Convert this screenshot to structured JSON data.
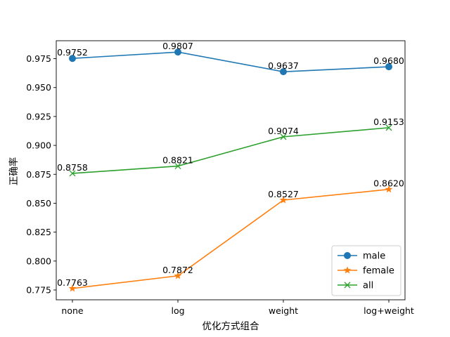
{
  "chart_data": {
    "type": "line",
    "title": "",
    "xlabel": "优化方式组合",
    "ylabel": "正确率",
    "categories": [
      "none",
      "log",
      "weight",
      "log+weight"
    ],
    "ylim": [
      0.7665,
      0.9905
    ],
    "yticks": [
      0.775,
      0.8,
      0.825,
      0.85,
      0.875,
      0.9,
      0.925,
      0.95,
      0.975
    ],
    "ytick_labels": [
      "0.775",
      "0.800",
      "0.825",
      "0.850",
      "0.875",
      "0.900",
      "0.925",
      "0.950",
      "0.975"
    ],
    "grid": false,
    "legend_position": "lower-right",
    "series": [
      {
        "name": "male",
        "values": [
          0.9752,
          0.9807,
          0.9637,
          0.968
        ],
        "labels": [
          "0.9752",
          "0.9807",
          "0.9637",
          "0.9680"
        ],
        "color": "#1f77b4",
        "marker": "circle"
      },
      {
        "name": "female",
        "values": [
          0.7763,
          0.7872,
          0.8527,
          0.862
        ],
        "labels": [
          "0.7763",
          "0.7872",
          "0.8527",
          "0.8620"
        ],
        "color": "#ff7f0e",
        "marker": "star"
      },
      {
        "name": "all",
        "values": [
          0.8758,
          0.8821,
          0.9074,
          0.9153
        ],
        "labels": [
          "0.8758",
          "0.8821",
          "0.9074",
          "0.9153"
        ],
        "color": "#2ca02c",
        "marker": "x"
      }
    ]
  }
}
